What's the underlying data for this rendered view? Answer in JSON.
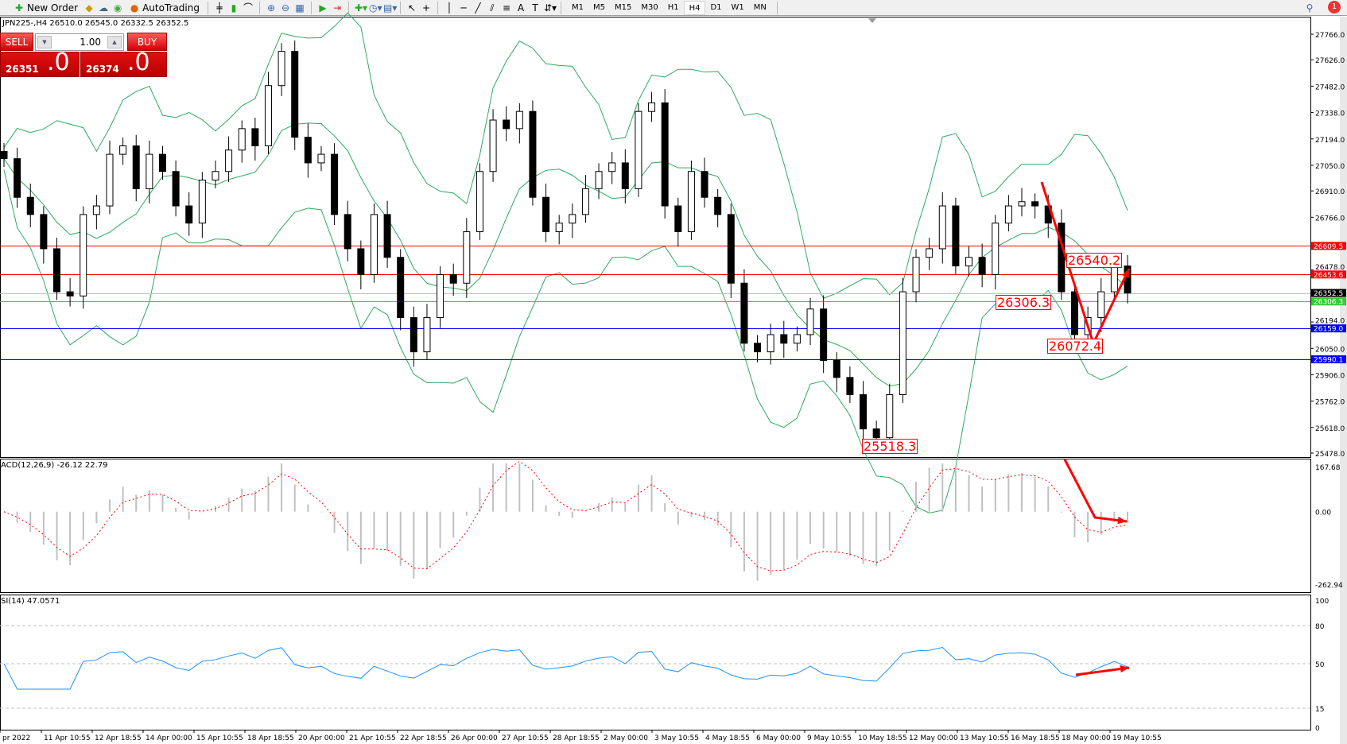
{
  "toolbar": {
    "new_order": "New Order",
    "autotrading": "AutoTrading",
    "timeframes": [
      "M1",
      "M5",
      "M15",
      "M30",
      "H1",
      "H4",
      "D1",
      "W1",
      "MN"
    ],
    "active_timeframe": "H4",
    "notification_count": "1"
  },
  "chart": {
    "title": "JPN225-,H4  26510.0 26545.0 26332.5 26352.5"
  },
  "one_click": {
    "sell_label": "SELL",
    "buy_label": "BUY",
    "lot": "1.00",
    "sell_price_main": "26351",
    "sell_price_big": ".0",
    "buy_price_main": "26374",
    "buy_price_big": ".0"
  },
  "indicators": {
    "macd_label": "ACD(12,26,9) -26.12 22.79",
    "rsi_label": "SI(14) 47.0571"
  },
  "colors": {
    "bull_body": "#ffffff",
    "bear_body": "#000000",
    "bands": "#2eaa5e",
    "macd_hist": "#c0c0c0",
    "macd_signal": "#ff0000",
    "rsi": "#1e90ff",
    "annotation": "#ff0000"
  },
  "chart_data": [
    {
      "type": "candlestick",
      "pane": "main",
      "symbol": "JPN225-",
      "timeframe": "H4",
      "ylim": [
        25478,
        27766
      ],
      "y_ticks": [
        "27766.0",
        "27626.0",
        "27482.0",
        "27338.0",
        "27194.0",
        "27050.0",
        "26910.0",
        "26766.0",
        "26478.0",
        "26194.0",
        "26050.0",
        "25906.0",
        "25762.0",
        "25618.0",
        "25478.0"
      ],
      "x_ticks": [
        "pr 2022",
        "11 Apr 10:55",
        "12 Apr 18:55",
        "14 Apr 00:00",
        "15 Apr 10:55",
        "18 Apr 18:55",
        "20 Apr 00:00",
        "21 Apr 10:55",
        "22 Apr 18:55",
        "26 Apr 00:00",
        "27 Apr 10:55",
        "28 Apr 18:55",
        "2 May 00:00",
        "3 May 10:55",
        "4 May 18:55",
        "6 May 00:00",
        "9 May 10:55",
        "10 May 18:55",
        "12 May 00:00",
        "13 May 10:55",
        "16 May 18:55",
        "18 May 00:00",
        "19 May 10:55"
      ],
      "closes": [
        27086,
        26875,
        26781,
        26594,
        26359,
        26336,
        26781,
        26828,
        27110,
        27156,
        26922,
        27110,
        27016,
        26828,
        26734,
        26969,
        27016,
        27133,
        27250,
        27156,
        27485,
        27672,
        27203,
        27063,
        27110,
        26781,
        26594,
        26453,
        26781,
        26547,
        26218,
        26031,
        26218,
        26453,
        26406,
        26687,
        27016,
        27297,
        27250,
        27344,
        26875,
        26687,
        26734,
        26781,
        26922,
        27016,
        27063,
        26922,
        27344,
        27391,
        26828,
        26687,
        27016,
        26875,
        26781,
        26406,
        26078,
        26031,
        26125,
        26078,
        26125,
        26265,
        25984,
        25891,
        25797,
        25610,
        25562,
        25797,
        26359,
        26547,
        26594,
        26828,
        26500,
        26547,
        26453,
        26734,
        26828,
        26851,
        26828,
        26734,
        26359,
        26125,
        26218,
        26359,
        26500,
        26352.5
      ],
      "overlay": "Bollinger Bands",
      "levels": [
        {
          "value": "26609.5",
          "color": "#ff0000"
        },
        {
          "value": "26453.6",
          "color": "#ff0000"
        },
        {
          "value": "26352.5",
          "color": "#000000",
          "line": "#c0c0c0"
        },
        {
          "value": "26306.3",
          "color": "#33cc33"
        },
        {
          "value": "26159.0",
          "color": "#0000ff"
        },
        {
          "value": "25990.1",
          "color": "#0000ff"
        }
      ],
      "annotations": [
        "26540.2",
        "26306.3",
        "26072.4",
        "25518.3"
      ]
    },
    {
      "type": "bar+line",
      "pane": "MACD",
      "ylim": [
        -262.94,
        167.68
      ],
      "y_ticks": [
        "167.68",
        "0.00",
        "-262.94"
      ]
    },
    {
      "type": "line",
      "pane": "RSI",
      "ylim": [
        0,
        100
      ],
      "y_ticks": [
        "100",
        "80",
        "50",
        "15",
        "0"
      ],
      "levels": [
        80,
        50,
        15
      ]
    }
  ]
}
